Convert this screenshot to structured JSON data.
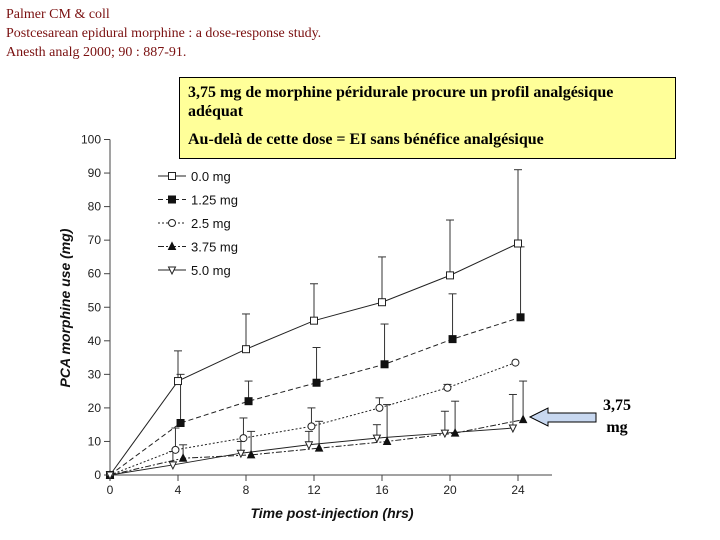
{
  "reference": {
    "line1": "Palmer CM & coll",
    "line2": "Postcesarean epidural morphine : a dose-response study.",
    "line3": "Anesth analg 2000; 90 : 887-91."
  },
  "callout": {
    "line1": "3,75 mg de morphine péridurale procure un profil analgésique adéquat",
    "line2": "Au-delà de cette dose = EI sans bénéfice analgésique"
  },
  "arrow_label": {
    "line1": "3,75",
    "line2": "mg"
  },
  "colors": {
    "callout_bg": "#ffff99",
    "reference_text": "#7a1010",
    "arrow_fill": "#c8d8f0"
  },
  "chart_data": {
    "type": "line",
    "xlabel": "Time post-injection (hrs)",
    "ylabel": "PCA morphine use (mg)",
    "xlim": [
      0,
      26
    ],
    "ylim": [
      0,
      100
    ],
    "xticks": [
      0,
      4,
      8,
      12,
      16,
      20,
      24
    ],
    "yticks": [
      0,
      10,
      20,
      30,
      40,
      50,
      60,
      70,
      80,
      90,
      100
    ],
    "grid": false,
    "legend_position": "top-left",
    "series": [
      {
        "name": "0.0 mg",
        "marker": "square-open",
        "dash": "solid",
        "x": [
          0,
          4,
          8,
          12,
          16,
          20,
          24
        ],
        "y": [
          0,
          28,
          37.5,
          46,
          51.5,
          59.5,
          69
        ],
        "err_upper": [
          0,
          37,
          48,
          57,
          65,
          76,
          91
        ]
      },
      {
        "name": "1.25 mg",
        "marker": "square-filled",
        "dash": "dashed",
        "x": [
          0,
          4,
          8,
          12,
          16,
          20,
          24
        ],
        "y": [
          0,
          15.5,
          22,
          27.5,
          33,
          40.5,
          47
        ],
        "err_upper": [
          0,
          30,
          28,
          38,
          45,
          54,
          68
        ]
      },
      {
        "name": "2.5 mg",
        "marker": "circle-open",
        "dash": "dotted",
        "x": [
          0,
          4,
          8,
          12,
          16,
          20,
          24
        ],
        "y": [
          0,
          7.5,
          11,
          14.5,
          20,
          26,
          33.5
        ],
        "err_upper": [
          0,
          14,
          17,
          20,
          23,
          27,
          33.5
        ]
      },
      {
        "name": "3.75 mg",
        "marker": "triangle-filled",
        "dash": "dashdot",
        "x": [
          0,
          4,
          8,
          12,
          16,
          20,
          24
        ],
        "y": [
          0,
          5,
          6,
          8,
          10,
          12.5,
          16.5
        ],
        "err_upper": [
          0,
          9,
          13,
          16,
          21,
          22,
          28
        ]
      },
      {
        "name": "5.0 mg",
        "marker": "triangle-down-open",
        "dash": "solid",
        "x": [
          0,
          4,
          8,
          12,
          16,
          20,
          24
        ],
        "y": [
          0,
          3,
          6.5,
          9,
          11,
          12.5,
          14
        ],
        "err_upper": [
          0,
          7,
          10,
          13,
          15,
          19,
          24
        ]
      }
    ]
  }
}
